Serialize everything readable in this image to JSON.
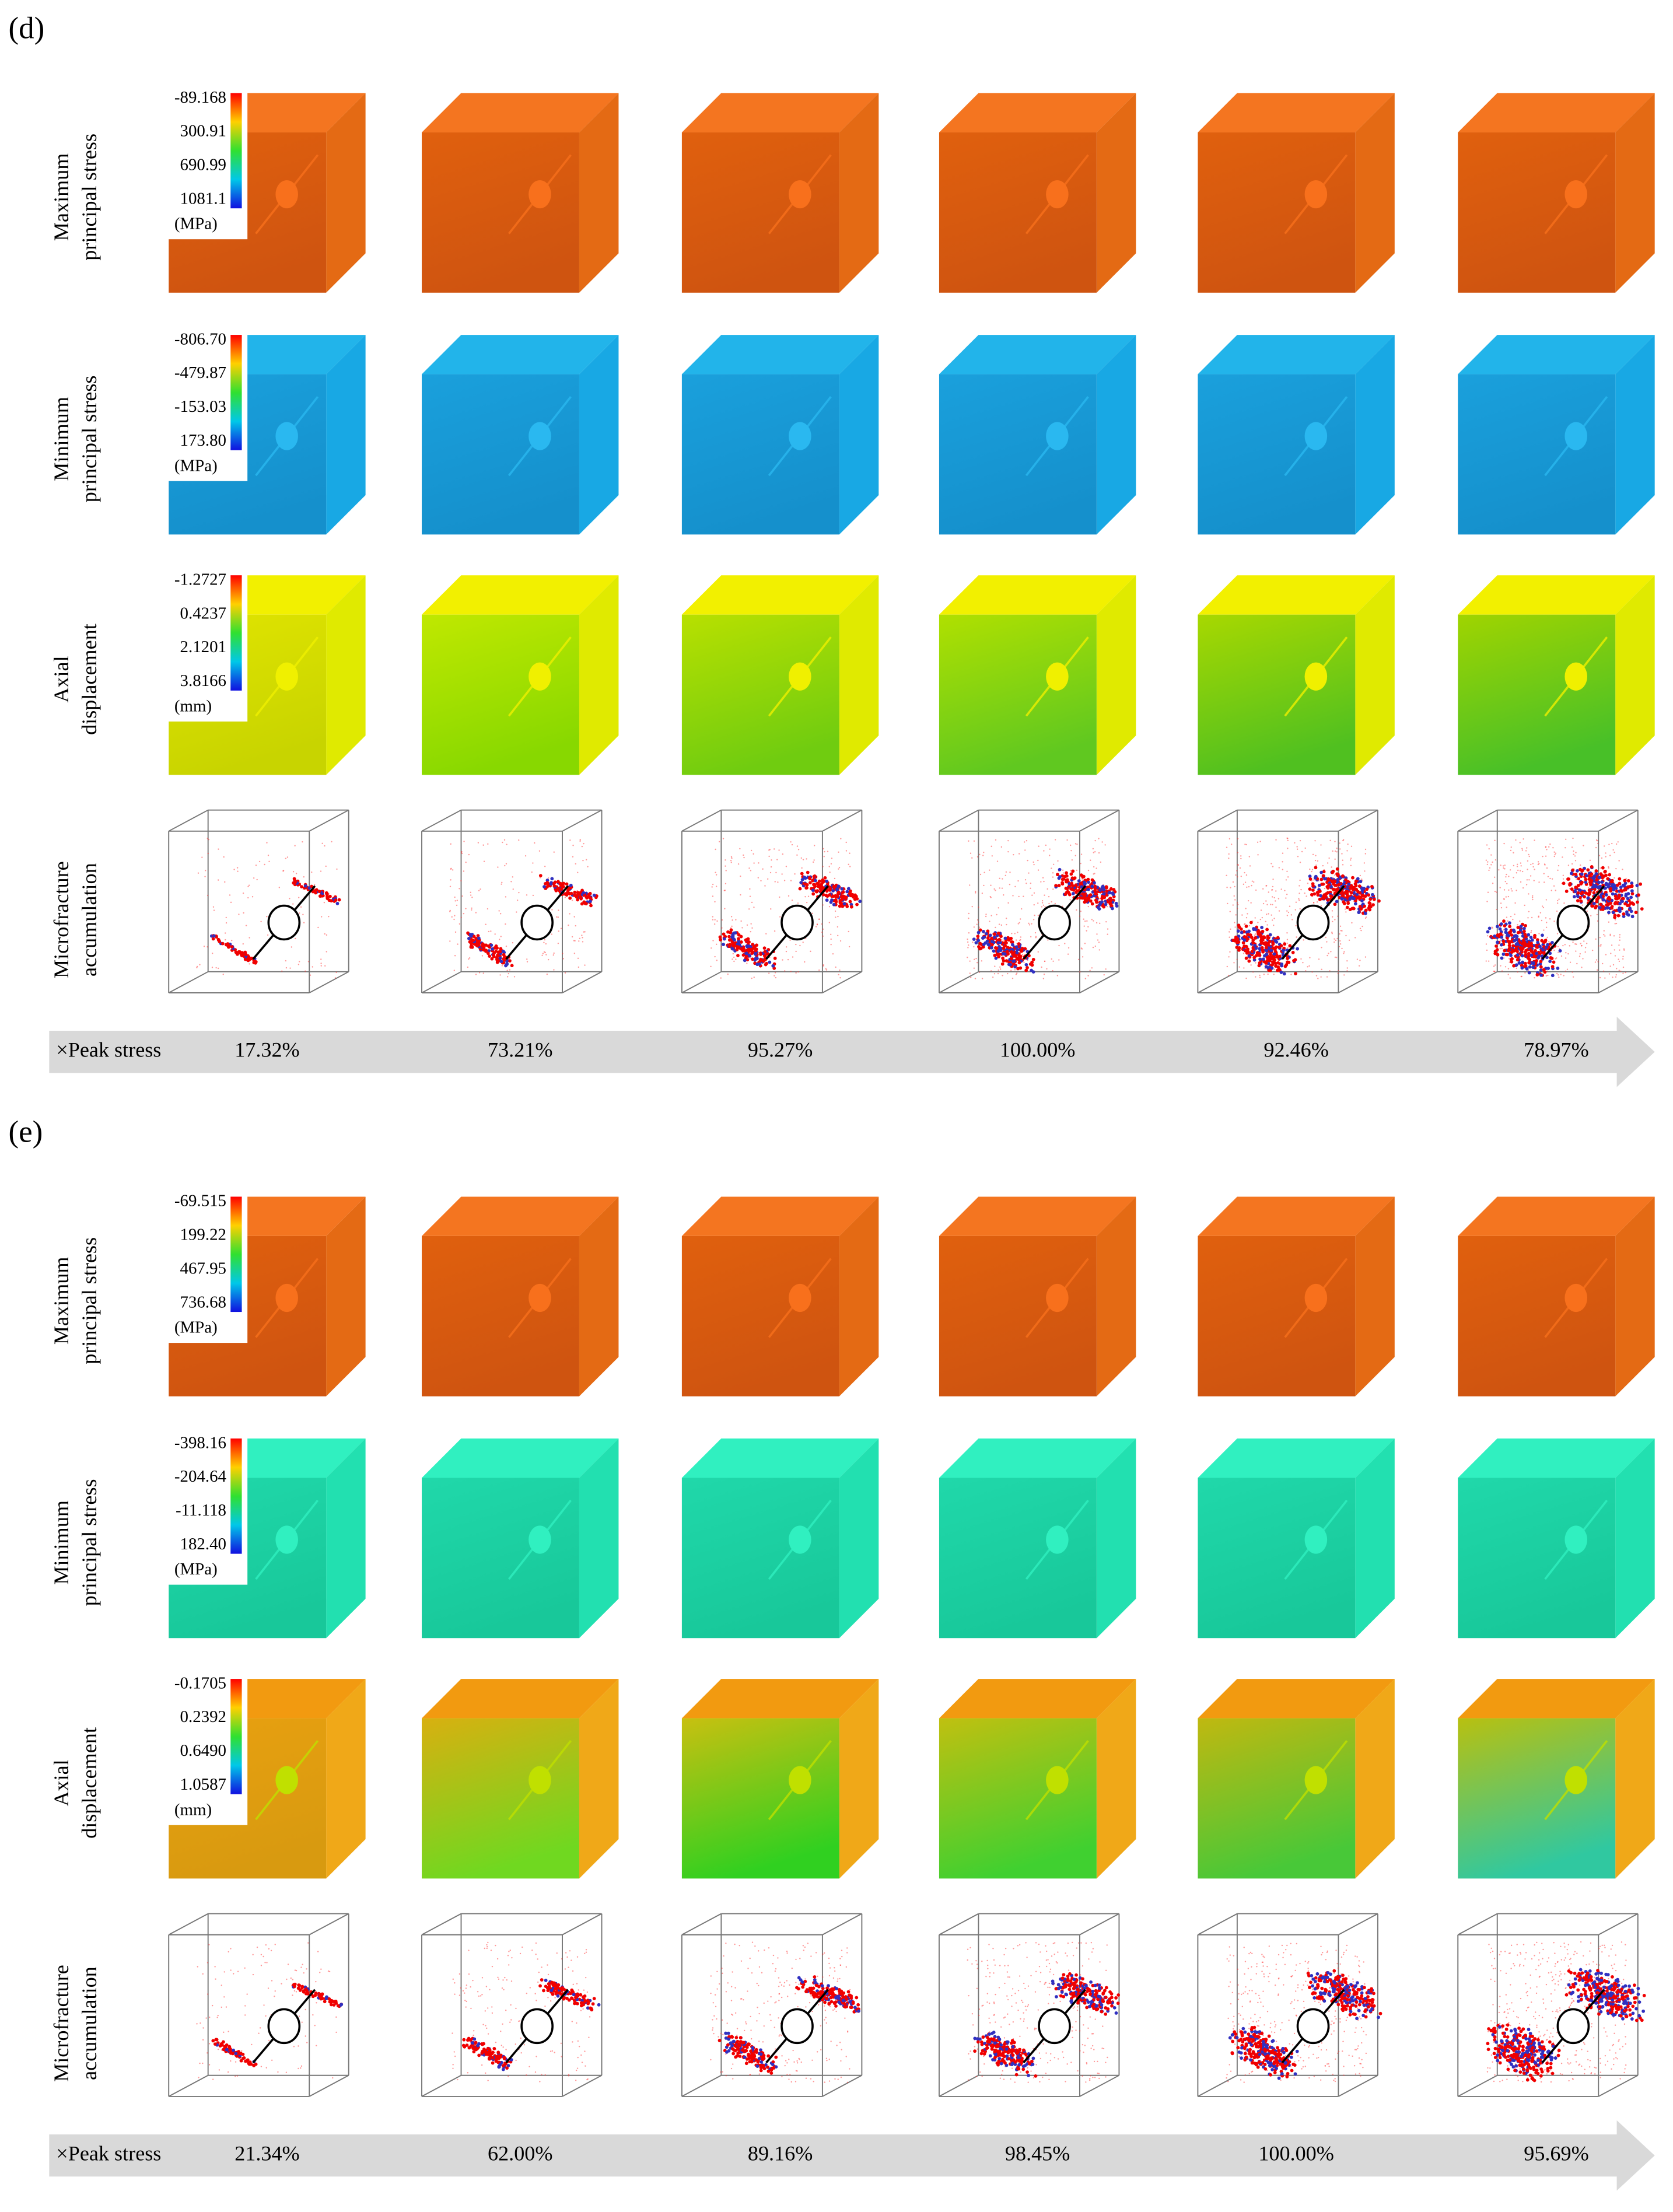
{
  "panels": [
    {
      "label": "(d)",
      "rows": [
        {
          "label": [
            "Maximum",
            "principal stress"
          ],
          "colorbar": {
            "ticks": [
              "-89.168",
              "300.91",
              "690.99",
              "1081.1"
            ],
            "unit": "(MPa)"
          }
        },
        {
          "label": [
            "Minimum",
            "principal stress"
          ],
          "colorbar": {
            "ticks": [
              "-806.70",
              "-479.87",
              "-153.03",
              "173.80"
            ],
            "unit": "(MPa)"
          }
        },
        {
          "label": [
            "Axial",
            "displacement"
          ],
          "colorbar": {
            "ticks": [
              "-1.2727",
              "0.4237",
              "2.1201",
              "3.8166"
            ],
            "unit": "(mm)"
          }
        },
        {
          "label": [
            "Microfracture",
            "accumulation"
          ]
        }
      ],
      "arrow": {
        "label": "×Peak stress",
        "values": [
          "17.32%",
          "73.21%",
          "95.27%",
          "100.00%",
          "92.46%",
          "78.97%"
        ]
      }
    },
    {
      "label": "(e)",
      "rows": [
        {
          "label": [
            "Maximum",
            "principal stress"
          ],
          "colorbar": {
            "ticks": [
              "-69.515",
              "199.22",
              "467.95",
              "736.68"
            ],
            "unit": "(MPa)"
          }
        },
        {
          "label": [
            "Minimum",
            "principal stress"
          ],
          "colorbar": {
            "ticks": [
              "-398.16",
              "-204.64",
              "-11.118",
              "182.40"
            ],
            "unit": "(MPa)"
          }
        },
        {
          "label": [
            "Axial",
            "displacement"
          ],
          "colorbar": {
            "ticks": [
              "-0.1705",
              "0.2392",
              "0.6490",
              "1.0587"
            ],
            "unit": "(mm)"
          }
        },
        {
          "label": [
            "Microfracture",
            "accumulation"
          ]
        }
      ],
      "arrow": {
        "label": "×Peak stress",
        "values": [
          "21.34%",
          "62.00%",
          "89.16%",
          "98.45%",
          "100.00%",
          "95.69%"
        ]
      }
    }
  ]
}
